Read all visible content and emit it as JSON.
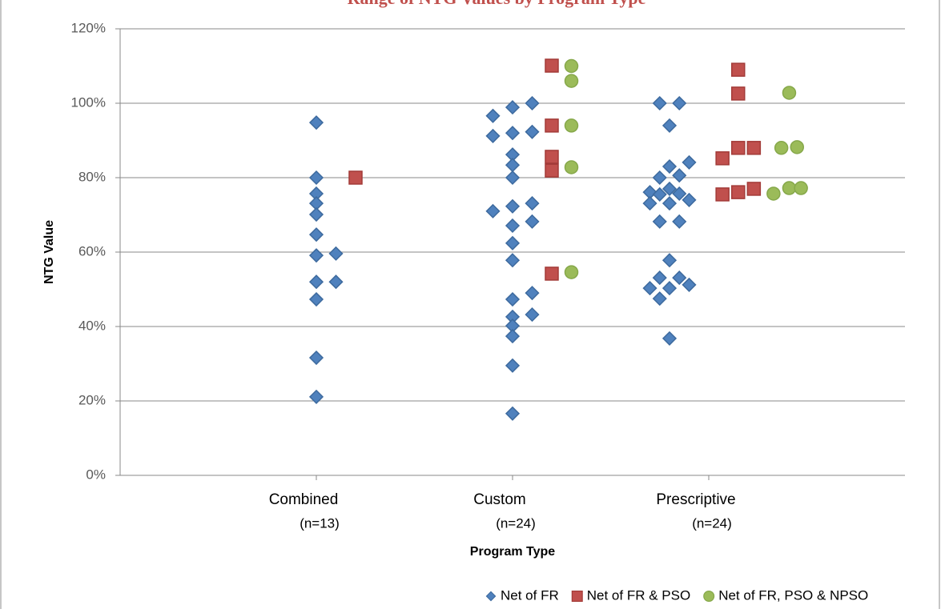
{
  "chart_data": {
    "type": "scatter",
    "title": "Range of NTG Values by Program Type",
    "xlabel": "Program Type",
    "ylabel": "NTG Value",
    "xlim": [
      0,
      4
    ],
    "xticks": [
      {
        "value": 1,
        "label": "Combined"
      },
      {
        "value": 2,
        "label": "Custom"
      },
      {
        "value": 3,
        "label": "Prescriptive"
      }
    ],
    "xtick_notes": [
      "(n=13)",
      "(n=24)",
      "(n=24)"
    ],
    "ylim": [
      0,
      120
    ],
    "yticks": [
      {
        "value": 0,
        "label": "0%"
      },
      {
        "value": 20,
        "label": "20%"
      },
      {
        "value": 40,
        "label": "40%"
      },
      {
        "value": 60,
        "label": "60%"
      },
      {
        "value": 80,
        "label": "80%"
      },
      {
        "value": 100,
        "label": "100%"
      },
      {
        "value": 120,
        "label": "120%"
      }
    ],
    "grid": true,
    "legend": "bottom-right",
    "series": [
      {
        "name": "Net of FR",
        "color": "#4f81bd",
        "marker": "diamond",
        "x": [
          1,
          1,
          1,
          1,
          1,
          1,
          1,
          1,
          1,
          1,
          1,
          1.1,
          1.1,
          1.9,
          1.9,
          1.9,
          2,
          2,
          2,
          2,
          2,
          2,
          2,
          2,
          2,
          2,
          2,
          2,
          2,
          2,
          2,
          2.1,
          2.1,
          2.1,
          2.1,
          2.1,
          2.1,
          2.7,
          2.7,
          2.7,
          2.75,
          2.75,
          2.75,
          2.75,
          2.75,
          2.75,
          2.8,
          2.8,
          2.8,
          2.8,
          2.8,
          2.8,
          2.8,
          2.85,
          2.85,
          2.85,
          2.85,
          2.85,
          2.9,
          2.9,
          2.9
        ],
        "values": [
          94.8,
          80,
          75.7,
          73.1,
          70.1,
          64.7,
          59.1,
          52,
          47.3,
          31.6,
          21.1,
          59.6,
          52,
          96.6,
          91.2,
          71,
          98.9,
          92,
          86.2,
          83.4,
          80,
          72.3,
          67.1,
          62.4,
          57.8,
          47.3,
          42.6,
          40.2,
          37.4,
          29.5,
          16.6,
          100,
          92.3,
          73.1,
          68.2,
          49,
          43.2,
          76.1,
          73.1,
          50.3,
          100,
          80,
          75.5,
          68.2,
          53.1,
          47.5,
          94,
          83,
          77,
          73.1,
          57.8,
          50.3,
          36.8,
          100,
          80.6,
          75.7,
          68.2,
          53.1,
          84.1,
          74,
          51.2
        ]
      },
      {
        "name": "Net of FR & PSO",
        "color": "#c0504d",
        "marker": "square",
        "x": [
          1.2,
          2.2,
          2.2,
          2.2,
          2.2,
          2.2,
          3.07,
          3.07,
          3.15,
          3.15,
          3.15,
          3.15,
          3.23,
          3.23
        ],
        "values": [
          80,
          110.1,
          94,
          85.6,
          81.9,
          54.2,
          85.2,
          75.5,
          109,
          102.6,
          88,
          76.1,
          88,
          77
        ]
      },
      {
        "name": "Net of FR, PSO & NPSO",
        "color": "#9bbb59",
        "marker": "circle",
        "x": [
          2.3,
          2.3,
          2.3,
          2.3,
          2.3,
          3.33,
          3.37,
          3.41,
          3.41,
          3.45,
          3.47
        ],
        "values": [
          110,
          106,
          94,
          82.8,
          54.6,
          75.7,
          88,
          102.8,
          77.2,
          88.2,
          77.2
        ]
      }
    ]
  }
}
